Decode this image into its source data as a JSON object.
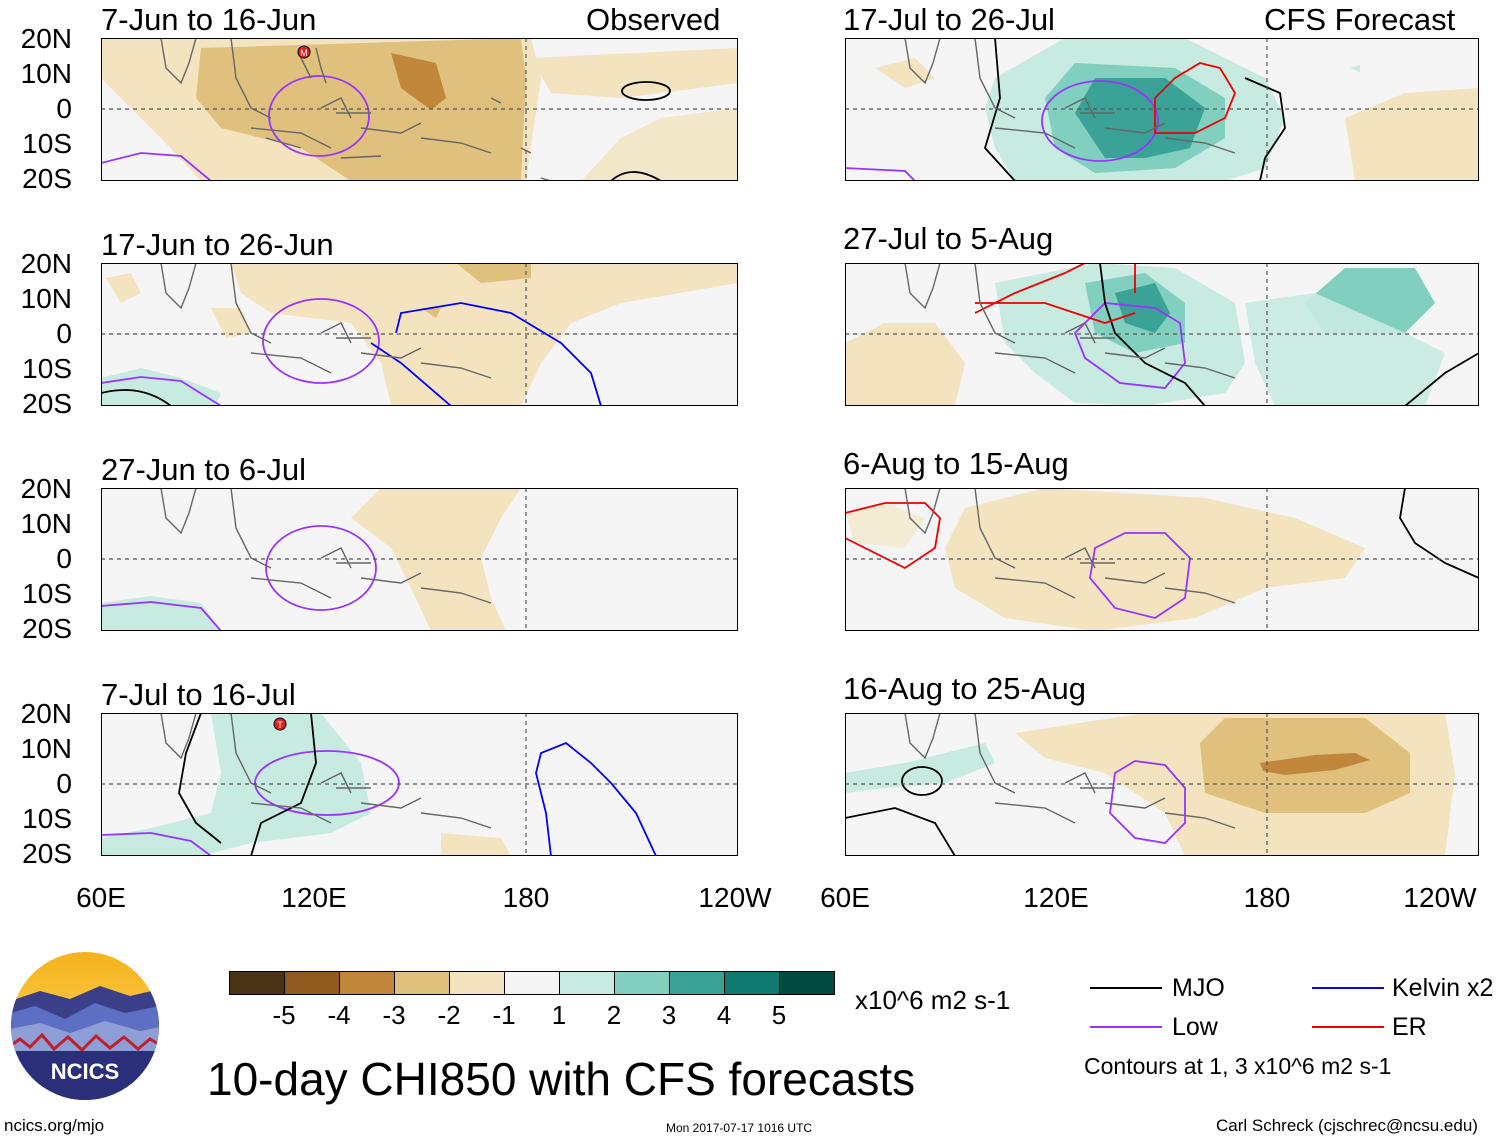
{
  "main_title": "10-day CHI850 with CFS forecasts",
  "observed_label": "Observed",
  "forecast_label": "CFS Forecast",
  "panels": [
    {
      "title": "7-Jun to 16-Jun"
    },
    {
      "title": "17-Jun to 26-Jun"
    },
    {
      "title": "27-Jun to 6-Jul"
    },
    {
      "title": "7-Jul to 16-Jul"
    },
    {
      "title": "17-Jul to 26-Jul"
    },
    {
      "title": "27-Jul to 5-Aug"
    },
    {
      "title": "6-Aug to 15-Aug"
    },
    {
      "title": "16-Aug to 25-Aug"
    }
  ],
  "lat_labels": [
    "20N",
    "10N",
    "0",
    "10S",
    "20S"
  ],
  "lon_labels": [
    "60E",
    "120E",
    "180",
    "120W"
  ],
  "colorbar": {
    "ticks": [
      "-5",
      "-4",
      "-3",
      "-2",
      "-1",
      "1",
      "2",
      "3",
      "4",
      "5"
    ],
    "colors": [
      "#4a3214",
      "#8e5a1e",
      "#c0873a",
      "#dfc07d",
      "#f3e4bf",
      "#f5f5f5",
      "#c7eae1",
      "#80cfbf",
      "#3aa297",
      "#0f7a70",
      "#004a40"
    ],
    "units": "x10^6 m2 s-1"
  },
  "legend": {
    "mjo": "MJO",
    "kelvin": "Kelvin x2",
    "low": "Low",
    "er": "ER",
    "note": "Contours at 1, 3 x10^6 m2 s-1",
    "colors": {
      "mjo": "#000000",
      "kelvin": "#0000ff",
      "low": "#9933ff",
      "er": "#ee0000"
    }
  },
  "logo_text": "NCICS",
  "storm_markers": [
    "M",
    "T"
  ],
  "footer": {
    "left": "ncics.org/mjo",
    "center": "Mon 2017-07-17 1016 UTC",
    "right": "Carl Schreck (cjschrec@ncsu.edu)"
  }
}
